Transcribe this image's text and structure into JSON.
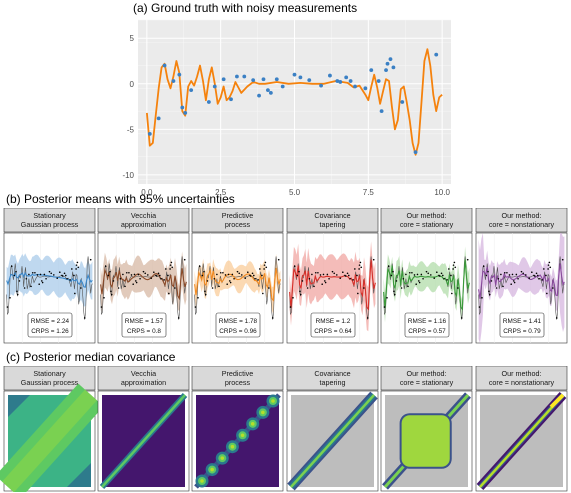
{
  "titles": {
    "a": "(a) Ground truth with noisy measurements",
    "b": "(b) Posterior means with 95% uncertainties",
    "c": "(c) Posterior median covariance"
  },
  "chart_data": [
    {
      "type": "line",
      "title": "(a) Ground truth with noisy measurements",
      "xlim": [
        -0.3,
        10.3
      ],
      "ylim": [
        -11,
        7
      ],
      "x_ticks": [
        "0.0",
        "2.5",
        "5.0",
        "7.5",
        "10.0"
      ],
      "y_ticks": [
        "5",
        "0",
        "-5",
        "-10"
      ],
      "grid": true,
      "colors": {
        "truth": "#f5820d",
        "points": "#3b80c4",
        "panel": "#ebebeb"
      },
      "series": [
        {
          "kind": "line",
          "x": [
            0.0,
            0.1,
            0.2,
            0.3,
            0.4,
            0.5,
            0.6,
            0.7,
            0.8,
            0.9,
            1.0,
            1.1,
            1.2,
            1.3,
            1.4,
            1.5,
            1.6,
            1.7,
            1.8,
            1.9,
            2.0,
            2.1,
            2.2,
            2.3,
            2.4,
            2.5,
            2.6,
            2.7,
            2.8,
            2.9,
            3.0,
            3.2,
            3.4,
            3.6,
            3.8,
            4.0,
            4.4,
            4.8,
            5.2,
            5.6,
            6.0,
            6.4,
            6.8,
            7.0,
            7.2,
            7.4,
            7.5,
            7.6,
            7.7,
            7.8,
            7.9,
            8.0,
            8.1,
            8.2,
            8.3,
            8.4,
            8.5,
            8.6,
            8.7,
            8.8,
            8.9,
            9.0,
            9.1,
            9.2,
            9.3,
            9.4,
            9.5,
            9.6,
            9.7,
            9.8,
            9.9,
            10.0
          ],
          "y": [
            -3.2,
            -6.8,
            -6.5,
            -3.5,
            -0.5,
            1.8,
            2.2,
            0.5,
            -0.5,
            0.8,
            2.5,
            1.2,
            -3.0,
            -3.5,
            -0.3,
            0.3,
            -0.2,
            0.8,
            2.0,
            0.3,
            -1.8,
            0.5,
            1.8,
            0.0,
            -2.2,
            -1.5,
            -0.3,
            -1.8,
            -1.5,
            -0.8,
            0.2,
            -1.0,
            -0.3,
            0.2,
            0.0,
            0.0,
            0.2,
            0.0,
            0.1,
            0.0,
            0.0,
            0.3,
            0.1,
            -0.4,
            -0.2,
            -1.2,
            -1.8,
            -0.3,
            1.0,
            -0.4,
            -2.2,
            -0.8,
            0.5,
            0.3,
            -2.5,
            -5.0,
            -4.0,
            -0.6,
            -0.3,
            -2.0,
            -4.0,
            -6.5,
            -7.8,
            -6.5,
            -2.0,
            2.5,
            3.8,
            2.0,
            -1.2,
            -3.0,
            -1.5,
            -1.2
          ]
        },
        {
          "kind": "scatter",
          "x": [
            0.1,
            0.4,
            0.6,
            0.9,
            1.1,
            1.2,
            1.3,
            1.5,
            2.1,
            2.3,
            2.6,
            2.85,
            3.05,
            3.3,
            3.6,
            3.8,
            3.95,
            4.1,
            4.2,
            4.4,
            4.6,
            5.0,
            5.2,
            5.5,
            5.9,
            6.2,
            6.45,
            6.55,
            6.75,
            6.9,
            7.05,
            7.4,
            7.6,
            7.85,
            7.95,
            8.1,
            8.15,
            8.25,
            8.35,
            8.65,
            9.1,
            9.8
          ],
          "y": [
            -5.5,
            -3.8,
            2.0,
            0.3,
            1.0,
            -2.6,
            -3.2,
            -0.7,
            -2.0,
            -0.3,
            0.5,
            -1.7,
            0.8,
            0.8,
            0.4,
            -1.3,
            0.5,
            -0.7,
            -1.0,
            0.5,
            -0.3,
            1.0,
            0.7,
            0.4,
            -0.2,
            0.9,
            0.3,
            0.2,
            0.7,
            0.3,
            -0.3,
            -0.5,
            1.5,
            0.3,
            -3.0,
            1.5,
            2.2,
            2.7,
            1.8,
            -2.0,
            -7.5,
            3.2
          ]
        }
      ]
    },
    {
      "type": "line",
      "title": "(b) Posterior means with 95% uncertainties",
      "panels": [
        {
          "label": "Stationary\nGaussian process",
          "rmse": "RMSE = 2.24",
          "crps": "CRPS = 1.26",
          "color": "#3a86c8",
          "band": "#a9cbe9"
        },
        {
          "label": "Vecchia\napproximation",
          "rmse": "RMSE = 1.57",
          "crps": "CRPS = 0.8",
          "color": "#8b4a28",
          "band": "#d7b8a4"
        },
        {
          "label": "Predictive\nprocess",
          "rmse": "RMSE = 1.78",
          "crps": "CRPS = 0.96",
          "color": "#f28b22",
          "band": "#f9cc9a"
        },
        {
          "label": "Covariance\ntapering",
          "rmse": "RMSE = 1.2",
          "crps": "CRPS = 0.64",
          "color": "#d8302a",
          "band": "#f0a5a2"
        },
        {
          "label": "Our method:\ncore = stationary",
          "rmse": "RMSE = 1.16",
          "crps": "CRPS = 0.57",
          "color": "#3a9a3a",
          "band": "#b2dcaa"
        },
        {
          "label": "Our method:\ncore = nonstationary",
          "rmse": "RMSE = 1.41",
          "crps": "CRPS = 0.79",
          "color": "#8a4a9e",
          "band": "#d5b5df"
        }
      ]
    },
    {
      "type": "heatmap",
      "title": "(c) Posterior median covariance",
      "panels": [
        {
          "label": "Stationary\nGaussian process",
          "pattern": "broad-diagonal"
        },
        {
          "label": "Vecchia\napproximation",
          "pattern": "thin-diagonal"
        },
        {
          "label": "Predictive\nprocess",
          "pattern": "blob-diagonal"
        },
        {
          "label": "Covariance\ntapering",
          "pattern": "banded-diagonal"
        },
        {
          "label": "Our method:\ncore = stationary",
          "pattern": "core-block"
        },
        {
          "label": "Our method:\ncore = nonstationary",
          "pattern": "nonstationary-diagonal"
        }
      ]
    }
  ]
}
